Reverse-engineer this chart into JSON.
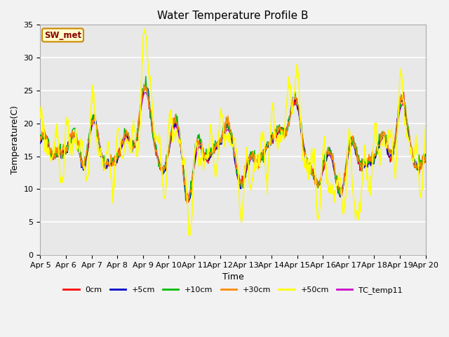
{
  "title": "Water Temperature Profile B",
  "xlabel": "Time",
  "ylabel": "Temperature(C)",
  "ylim": [
    0,
    35
  ],
  "yticks": [
    0,
    5,
    10,
    15,
    20,
    25,
    30,
    35
  ],
  "xtick_labels": [
    "Apr 5",
    "Apr 6",
    "Apr 7",
    "Apr 8",
    "Apr 9",
    "Apr 10",
    "Apr 11",
    "Apr 12",
    "Apr 13",
    "Apr 14",
    "Apr 15",
    "Apr 16",
    "Apr 17",
    "Apr 18",
    "Apr 19",
    "Apr 20"
  ],
  "series_colors": {
    "0cm": "#ff0000",
    "+5cm": "#0000cd",
    "+10cm": "#00bb00",
    "+30cm": "#ff8800",
    "+50cm": "#ffff00",
    "TC_temp11": "#cc00cc"
  },
  "legend_labels": [
    "0cm",
    "+5cm",
    "+10cm",
    "+30cm",
    "+50cm",
    "TC_temp11"
  ],
  "sw_met_label": "SW_met",
  "sw_met_bg": "#ffffcc",
  "sw_met_border": "#cc8800",
  "sw_met_text_color": "#880000",
  "plot_bg": "#e8e8e8",
  "title_fontsize": 11,
  "axis_fontsize": 9,
  "tick_fontsize": 8
}
